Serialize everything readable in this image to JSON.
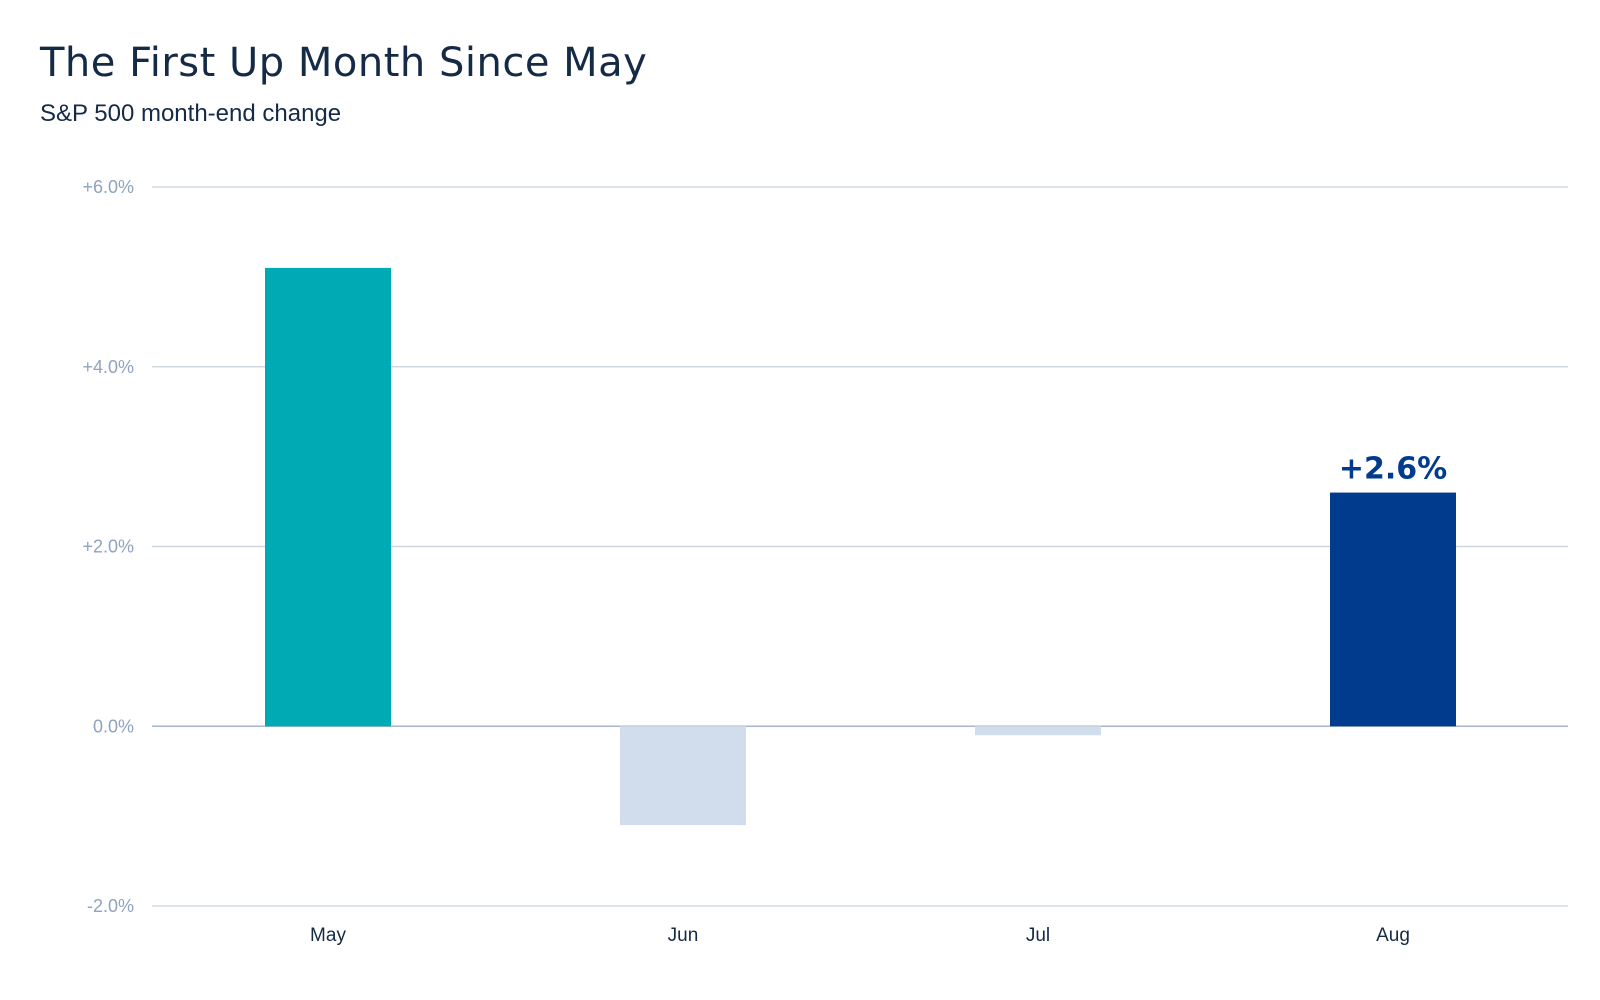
{
  "chart_data": {
    "type": "bar",
    "title": "The First Up Month Since May",
    "subtitle": "S&P 500 month-end change",
    "xlabel": "",
    "ylabel": "",
    "categories": [
      "May",
      "Jun",
      "Jul",
      "Aug"
    ],
    "values": [
      5.1,
      -1.1,
      -0.1,
      2.6
    ],
    "ylim": [
      -2.0,
      6.0
    ],
    "yticks": [
      -2.0,
      0.0,
      2.0,
      4.0,
      6.0
    ],
    "ytick_labels": [
      "-2.0%",
      "0.0%",
      "+2.0%",
      "+4.0%",
      "+6.0%"
    ],
    "bar_colors": [
      "#00aab5",
      "#d1ddec",
      "#d1ddec",
      "#003b8e"
    ],
    "data_labels": [
      {
        "category": "Aug",
        "text": "+2.6%",
        "color": "#003b8e"
      }
    ],
    "grid": true,
    "legend": "none"
  }
}
